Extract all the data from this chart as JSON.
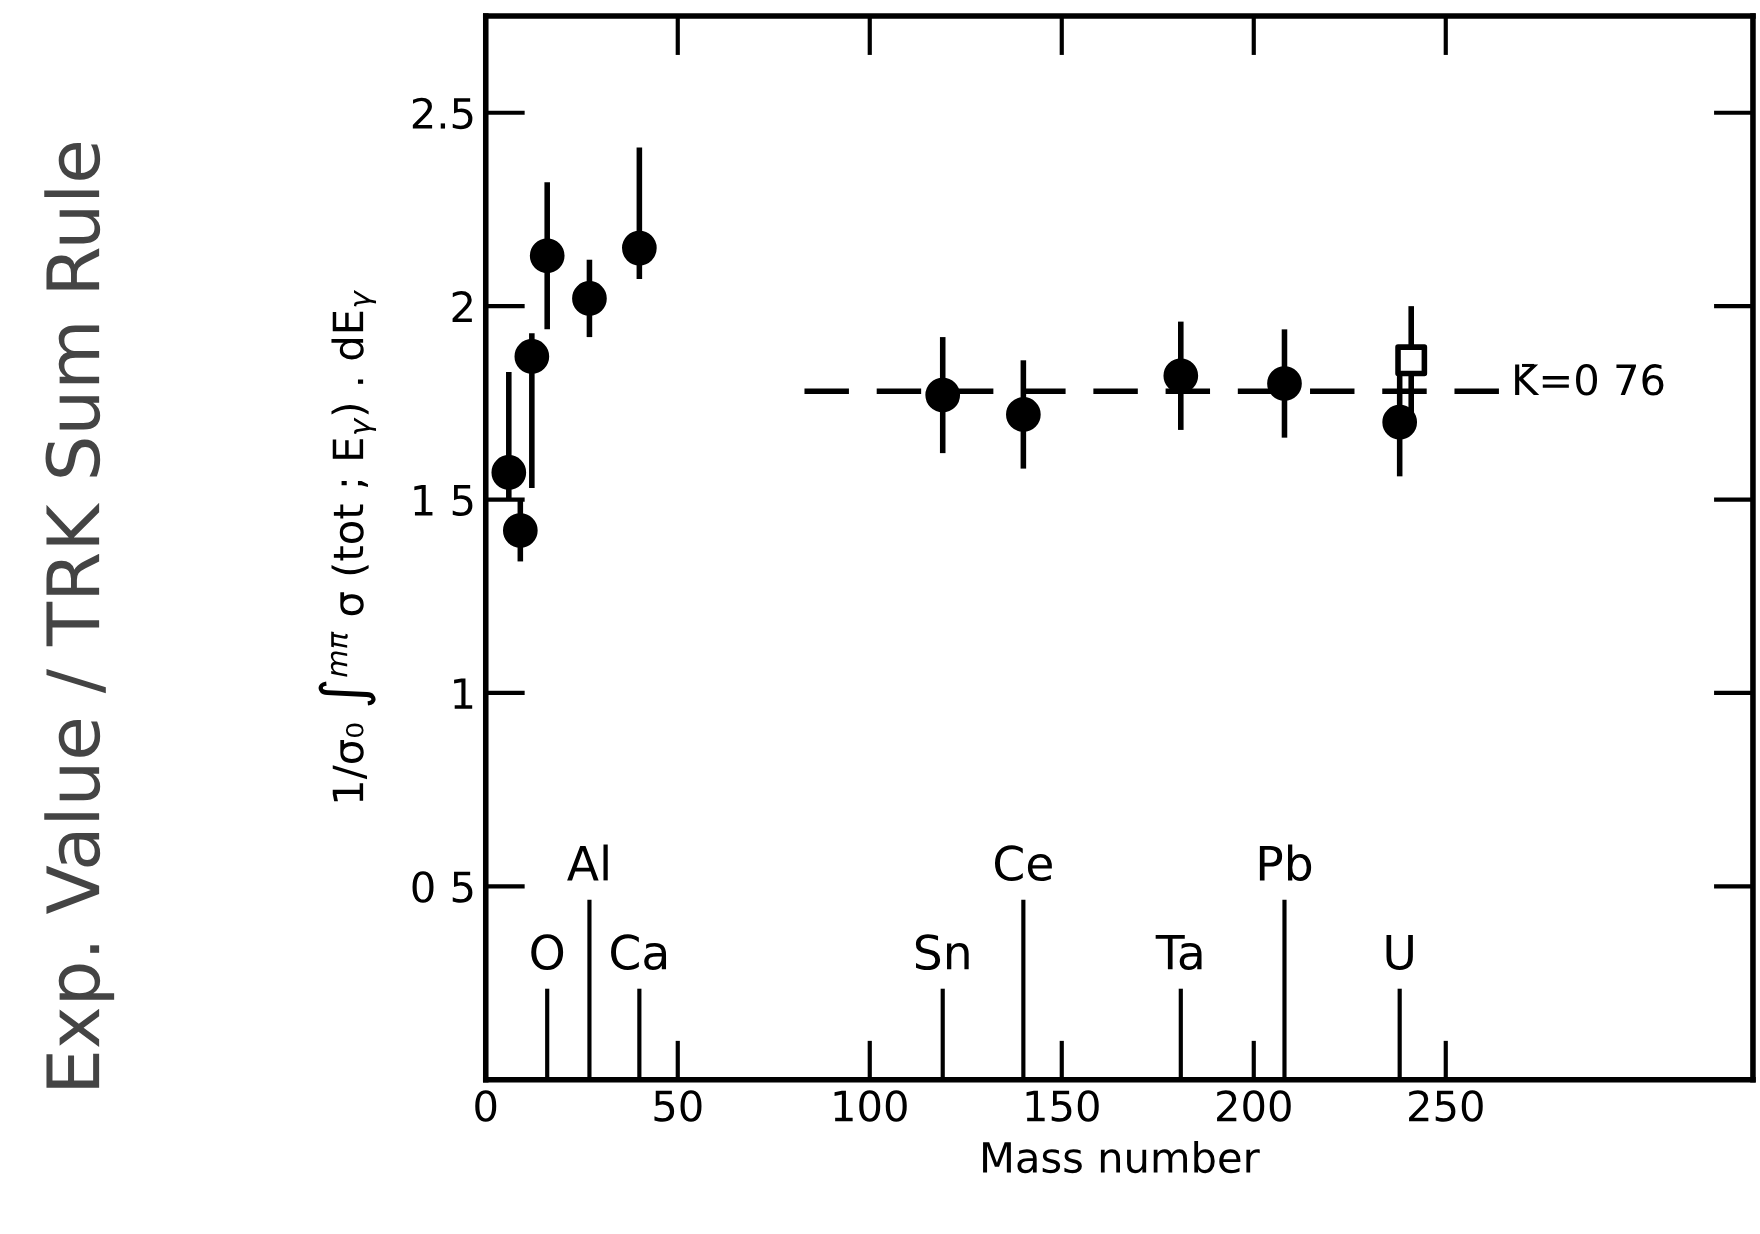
{
  "chart_data": {
    "type": "scatter",
    "xlabel": "Mass number",
    "ylabel": "1/σ₀ ∫$^{mπ}$ σ (tot ; E$_{γ}$) . dE$_{γ}$",
    "xlim": [
      0,
      330
    ],
    "ylim": [
      0,
      2.75
    ],
    "xticks": [
      0,
      50,
      100,
      150,
      200,
      250
    ],
    "yticks": [
      {
        "value": 0.5,
        "label": "0 5"
      },
      1,
      {
        "value": 1.5,
        "label": "1 5"
      },
      2,
      2.5
    ],
    "grid": false,
    "legend": false,
    "series": [
      {
        "color": "#000000",
        "marker": "circle",
        "x": [
          6,
          9,
          12,
          16,
          27,
          40,
          119,
          140,
          181,
          208,
          238
        ],
        "values": [
          1.57,
          1.42,
          1.87,
          2.13,
          2.02,
          2.15,
          1.77,
          1.72,
          1.82,
          1.8,
          1.7
        ],
        "errors": [
          [
            1.5,
            1.83
          ],
          0.08,
          [
            1.53,
            1.93
          ],
          0.19,
          0.1,
          [
            2.07,
            2.41
          ],
          0.15,
          0.14,
          0.14,
          0.14,
          0.14
        ]
      },
      {
        "color": "#000000",
        "marker": "square",
        "x": [
          241
        ],
        "values": [
          1.86
        ],
        "errors": [
          0.14
        ]
      },
      {
        "type": "line",
        "name": "K̄=0 76",
        "color": "#000000",
        "line_style": "dashed",
        "marker": "none",
        "x": [
          83,
          266
        ],
        "values": [
          1.78,
          1.78
        ]
      }
    ],
    "annotations": [
      "Exp. Value / TRK Sum Rule"
    ],
    "ref_lines": [
      {
        "axis": "x",
        "value": 16,
        "label": "O"
      },
      {
        "axis": "x",
        "value": 27,
        "label": "Al"
      },
      {
        "axis": "x",
        "value": 40,
        "label": "Ca"
      },
      {
        "axis": "x",
        "value": 119,
        "label": "Sn"
      },
      {
        "axis": "x",
        "value": 140,
        "label": "Ce"
      },
      {
        "axis": "x",
        "value": 181,
        "label": "Ta"
      },
      {
        "axis": "x",
        "value": 208,
        "label": "Pb"
      },
      {
        "axis": "x",
        "value": 238,
        "label": "U"
      }
    ]
  }
}
